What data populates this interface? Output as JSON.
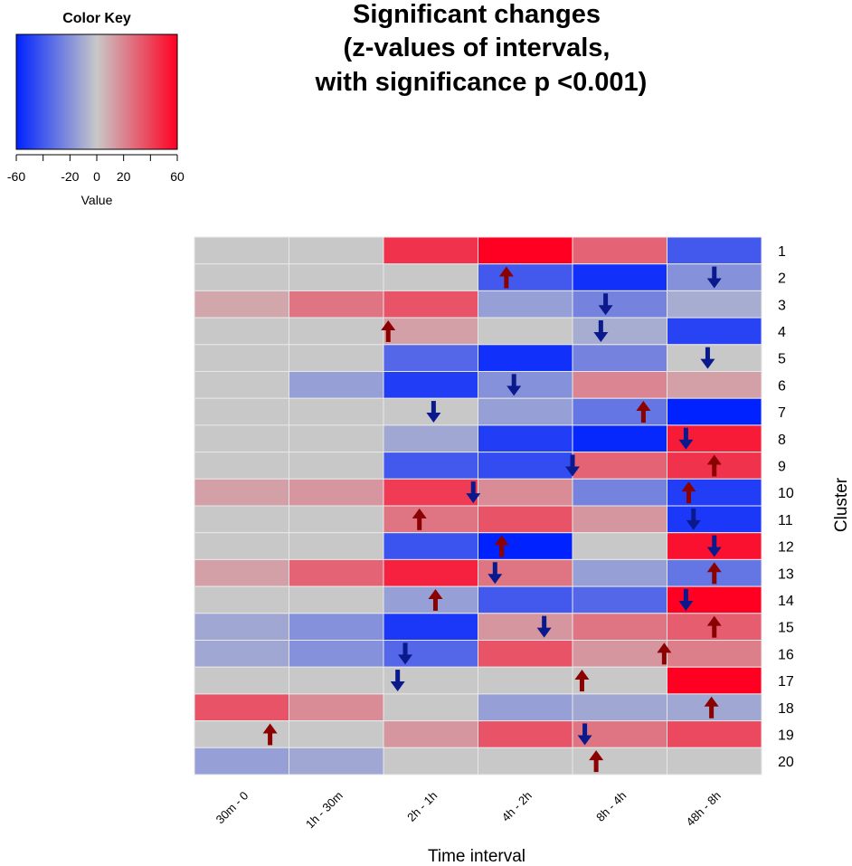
{
  "chart_data": {
    "type": "heatmap",
    "title": [
      "Significant changes",
      "(z-values of intervals,",
      "with significance p <0.001)"
    ],
    "xlabel": "Time interval",
    "ylabel": "Cluster",
    "columns": [
      "30m - 0",
      "1h - 30m",
      "2h - 1h",
      "4h - 2h",
      "8h - 4h",
      "48h - 8h"
    ],
    "rows": [
      "1",
      "2",
      "3",
      "4",
      "5",
      "6",
      "7",
      "8",
      "9",
      "10",
      "11",
      "12",
      "13",
      "14",
      "15",
      "16",
      "17",
      "18",
      "19",
      "20"
    ],
    "values": [
      [
        0,
        0,
        45,
        60,
        30,
        -40
      ],
      [
        0,
        0,
        0,
        -40,
        -55,
        -20
      ],
      [
        10,
        25,
        35,
        -15,
        -25,
        -10
      ],
      [
        0,
        0,
        12,
        0,
        -10,
        -48
      ],
      [
        0,
        0,
        -35,
        -55,
        -25,
        0
      ],
      [
        0,
        -15,
        -50,
        -20,
        20,
        12
      ],
      [
        0,
        0,
        0,
        -15,
        -30,
        -62
      ],
      [
        0,
        0,
        -12,
        -50,
        -58,
        52
      ],
      [
        0,
        0,
        -40,
        -45,
        30,
        45
      ],
      [
        12,
        15,
        42,
        18,
        -25,
        -50
      ],
      [
        0,
        0,
        25,
        35,
        15,
        -52
      ],
      [
        0,
        0,
        -42,
        -62,
        0,
        55
      ],
      [
        12,
        30,
        50,
        25,
        -15,
        -30
      ],
      [
        0,
        0,
        -15,
        -40,
        -35,
        65
      ],
      [
        -12,
        -20,
        -52,
        15,
        25,
        32
      ],
      [
        -12,
        -20,
        -35,
        35,
        15,
        22
      ],
      [
        0,
        0,
        0,
        0,
        0,
        62
      ],
      [
        35,
        18,
        0,
        -15,
        -12,
        -12
      ],
      [
        0,
        0,
        15,
        35,
        25,
        38
      ],
      [
        -15,
        -12,
        0,
        0,
        0,
        0
      ]
    ],
    "arrows": [
      {
        "row": 2,
        "col": 4.3,
        "dir": "up"
      },
      {
        "row": 2,
        "col": 6.5,
        "dir": "down"
      },
      {
        "row": 3,
        "col": 5.35,
        "dir": "down"
      },
      {
        "row": 4,
        "col": 3.05,
        "dir": "up"
      },
      {
        "row": 4,
        "col": 5.3,
        "dir": "down"
      },
      {
        "row": 5,
        "col": 6.43,
        "dir": "down"
      },
      {
        "row": 6,
        "col": 4.38,
        "dir": "down"
      },
      {
        "row": 7,
        "col": 3.53,
        "dir": "down"
      },
      {
        "row": 7,
        "col": 5.75,
        "dir": "up"
      },
      {
        "row": 8,
        "col": 6.2,
        "dir": "down"
      },
      {
        "row": 9,
        "col": 6.5,
        "dir": "up"
      },
      {
        "row": 9,
        "col": 5.0,
        "dir": "down"
      },
      {
        "row": 10,
        "col": 3.95,
        "dir": "down"
      },
      {
        "row": 10,
        "col": 6.23,
        "dir": "up"
      },
      {
        "row": 11,
        "col": 3.38,
        "dir": "up"
      },
      {
        "row": 11,
        "col": 6.28,
        "dir": "down"
      },
      {
        "row": 12,
        "col": 4.25,
        "dir": "up"
      },
      {
        "row": 12,
        "col": 6.5,
        "dir": "down"
      },
      {
        "row": 13,
        "col": 4.18,
        "dir": "down"
      },
      {
        "row": 13,
        "col": 6.5,
        "dir": "up"
      },
      {
        "row": 14,
        "col": 3.55,
        "dir": "up"
      },
      {
        "row": 14,
        "col": 6.2,
        "dir": "down"
      },
      {
        "row": 15,
        "col": 4.7,
        "dir": "down"
      },
      {
        "row": 15,
        "col": 6.5,
        "dir": "up"
      },
      {
        "row": 16,
        "col": 3.23,
        "dir": "down"
      },
      {
        "row": 16,
        "col": 5.97,
        "dir": "up"
      },
      {
        "row": 17,
        "col": 3.15,
        "dir": "down"
      },
      {
        "row": 17,
        "col": 5.1,
        "dir": "up"
      },
      {
        "row": 18,
        "col": 6.47,
        "dir": "up"
      },
      {
        "row": 19,
        "col": 1.8,
        "dir": "up"
      },
      {
        "row": 19,
        "col": 5.13,
        "dir": "down"
      },
      {
        "row": 20,
        "col": 5.25,
        "dir": "up"
      }
    ],
    "colors": {
      "low": "#0022ff",
      "mid": "#c8c8c8",
      "high": "#ff0022",
      "arrow_up": "#8b0000",
      "arrow_down": "#0a1a8c",
      "cell_border": "#e8e8e8"
    },
    "color_key": {
      "title": "Color Key",
      "label": "Value",
      "range": [
        -60,
        60
      ],
      "ticks": [
        -60,
        -40,
        -20,
        0,
        20,
        40,
        60
      ],
      "tick_labels": [
        "-60",
        "",
        "-20",
        "0",
        "20",
        "",
        "60"
      ]
    }
  }
}
